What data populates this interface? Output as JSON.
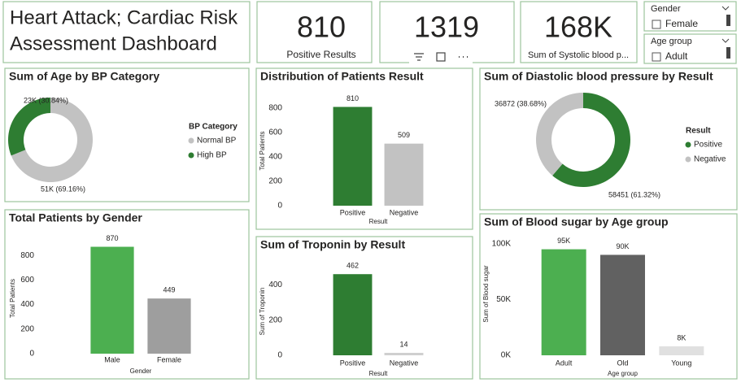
{
  "header": {
    "title_lines": [
      "Heart Attack; Cardiac Risk",
      "Assessment Dashboard"
    ]
  },
  "cards": [
    {
      "value": 810,
      "label": "Positive Results"
    },
    {
      "value": 1319
    },
    {
      "value": "168K",
      "label": "Sum of Systolic blood p..."
    }
  ],
  "slicers": [
    {
      "title": "Gender",
      "items": [
        "Female"
      ]
    },
    {
      "title": "Age group",
      "items": [
        "Adult"
      ]
    }
  ],
  "chart_data": [
    {
      "type": "donut",
      "title": "Sum of Age by BP Category",
      "legend_title": "BP Category",
      "categories": [
        "Normal BP",
        "High BP"
      ],
      "values": [
        51000,
        23000
      ],
      "value_labels": [
        "51K (69.16%)",
        "23K (30.84%)"
      ],
      "colors": [
        "#c2c2c2",
        "#2e7d32"
      ]
    },
    {
      "type": "bar",
      "title": "Distribution of Patients Result",
      "xlabel": "Result",
      "ylabel": "Total Patients",
      "categories": [
        "Positive",
        "Negative"
      ],
      "values": [
        810,
        509
      ],
      "colors": [
        "#2e7d32",
        "#c2c2c2"
      ],
      "ylim": [
        0,
        900
      ],
      "yticks": [
        0,
        200,
        400,
        600,
        800
      ]
    },
    {
      "type": "bar",
      "title": "Total Patients by Gender",
      "xlabel": "Gender",
      "ylabel": "Total Patients",
      "categories": [
        "Male",
        "Female"
      ],
      "values": [
        870,
        449
      ],
      "colors": [
        "#4caf50",
        "#9e9e9e"
      ],
      "ylim": [
        0,
        900
      ],
      "yticks": [
        0,
        200,
        400,
        600,
        800
      ]
    },
    {
      "type": "bar",
      "title": "Sum of Troponin by Result",
      "xlabel": "Result",
      "ylabel": "Sum of Troponin",
      "categories": [
        "Positive",
        "Negative"
      ],
      "values": [
        462,
        14
      ],
      "colors": [
        "#2e7d32",
        "#cfcfcf"
      ],
      "ylim": [
        0,
        500
      ],
      "yticks": [
        0,
        200,
        400
      ]
    },
    {
      "type": "donut",
      "title": "Sum of Diastolic blood pressure by Result",
      "legend_title": "Result",
      "categories": [
        "Positive",
        "Negative"
      ],
      "values": [
        58451,
        36872
      ],
      "value_labels": [
        "58451 (61.32%)",
        "36872 (38.68%)"
      ],
      "colors": [
        "#2e7d32",
        "#c2c2c2"
      ]
    },
    {
      "type": "bar",
      "title": "Sum of Blood sugar by Age group",
      "xlabel": "Age group",
      "ylabel": "Sum of Blood sugar",
      "categories": [
        "Adult",
        "Old",
        "Young"
      ],
      "values": [
        95000,
        90000,
        8000
      ],
      "value_labels": [
        "95K",
        "90K",
        "8K"
      ],
      "colors": [
        "#4caf50",
        "#616161",
        "#e0e0e0"
      ],
      "ylim": [
        0,
        110000
      ],
      "yticks": [
        {
          "value": 0,
          "label": "0K"
        },
        {
          "value": 50000,
          "label": "50K"
        },
        {
          "value": 100000,
          "label": "100K"
        }
      ]
    }
  ]
}
